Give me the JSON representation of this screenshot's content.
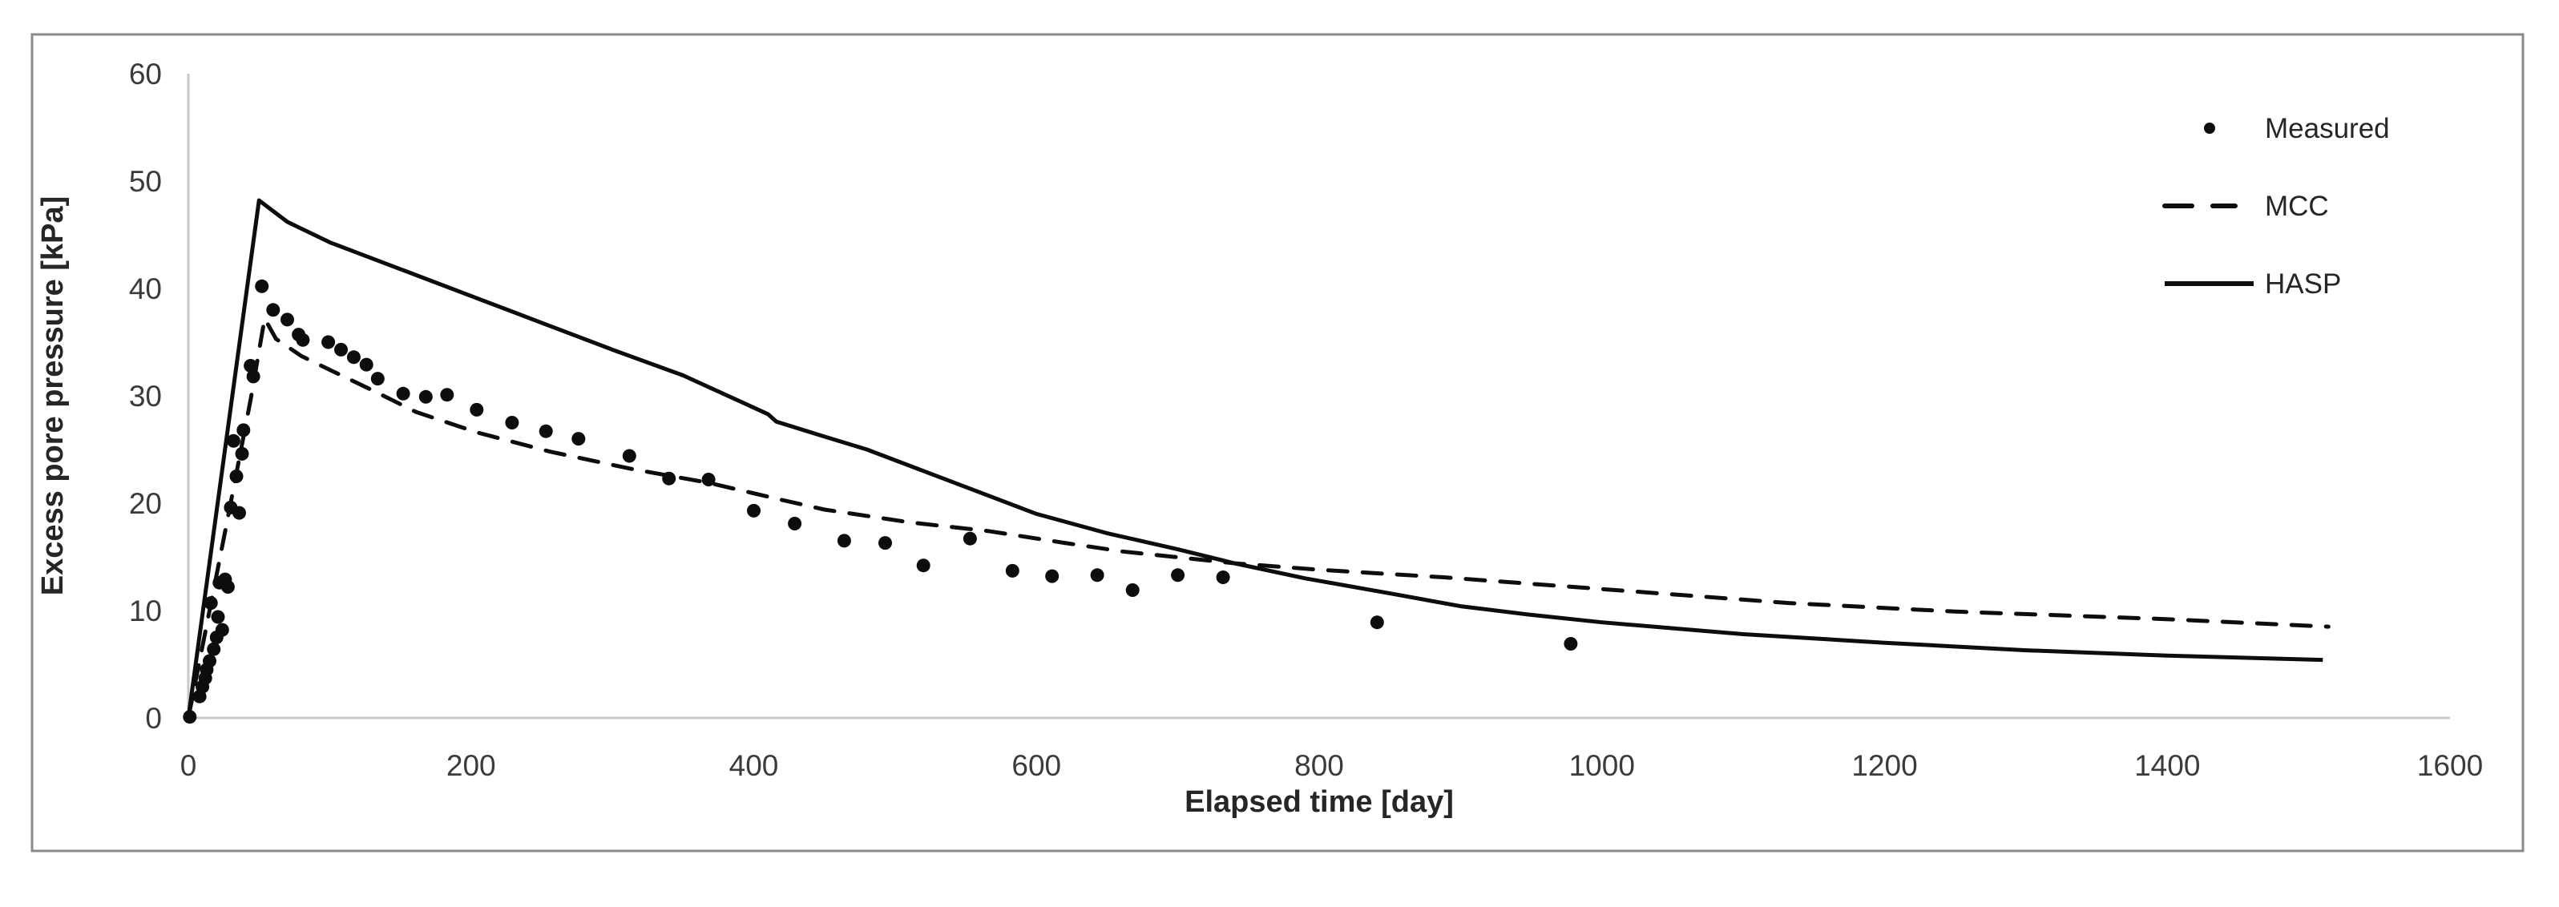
{
  "figure": {
    "border_color": "#8a8a8a",
    "background_color": "#ffffff",
    "axis_line_color": "#c9c9c9",
    "text_color": "#262626"
  },
  "chart_data": {
    "type": "line",
    "title": "",
    "xlabel": "Elapsed time [day]",
    "ylabel": "Excess pore pressure [kPa]",
    "xlim": [
      0,
      1600
    ],
    "ylim": [
      0,
      60
    ],
    "x_ticks": [
      0,
      200,
      400,
      600,
      800,
      1000,
      1200,
      1400,
      1600
    ],
    "y_ticks": [
      0,
      10,
      20,
      30,
      40,
      50,
      60
    ],
    "grid": false,
    "legend_position": "top-right",
    "series": [
      {
        "name": "Measured",
        "kind": "scatter",
        "marker": "dot",
        "color": "#0d0d0d",
        "points": [
          [
            1,
            0.1
          ],
          [
            8,
            2.0
          ],
          [
            10,
            2.9
          ],
          [
            12,
            3.7
          ],
          [
            13,
            4.5
          ],
          [
            15,
            5.3
          ],
          [
            18,
            6.4
          ],
          [
            20,
            7.5
          ],
          [
            24,
            8.2
          ],
          [
            21,
            9.4
          ],
          [
            16,
            10.7
          ],
          [
            22,
            12.6
          ],
          [
            26,
            12.9
          ],
          [
            28,
            12.2
          ],
          [
            30,
            19.6
          ],
          [
            36,
            19.1
          ],
          [
            34,
            22.5
          ],
          [
            32,
            25.8
          ],
          [
            38,
            24.6
          ],
          [
            39,
            26.8
          ],
          [
            44,
            32.8
          ],
          [
            46,
            31.8
          ],
          [
            52,
            40.2
          ],
          [
            60,
            38.0
          ],
          [
            70,
            37.1
          ],
          [
            78,
            35.7
          ],
          [
            81,
            35.2
          ],
          [
            99,
            35.0
          ],
          [
            108,
            34.3
          ],
          [
            117,
            33.6
          ],
          [
            126,
            32.9
          ],
          [
            134,
            31.6
          ],
          [
            152,
            30.2
          ],
          [
            168,
            29.9
          ],
          [
            183,
            30.1
          ],
          [
            204,
            28.7
          ],
          [
            229,
            27.5
          ],
          [
            253,
            26.7
          ],
          [
            276,
            26.0
          ],
          [
            312,
            24.4
          ],
          [
            340,
            22.3
          ],
          [
            368,
            22.2
          ],
          [
            400,
            19.3
          ],
          [
            429,
            18.1
          ],
          [
            464,
            16.5
          ],
          [
            493,
            16.3
          ],
          [
            520,
            14.2
          ],
          [
            553,
            16.7
          ],
          [
            583,
            13.7
          ],
          [
            611,
            13.2
          ],
          [
            643,
            13.3
          ],
          [
            668,
            11.9
          ],
          [
            700,
            13.3
          ],
          [
            732,
            13.1
          ],
          [
            841,
            8.9
          ],
          [
            978,
            6.9
          ]
        ]
      },
      {
        "name": "MCC",
        "kind": "line",
        "style": "dashed",
        "color": "#0d0d0d",
        "points": [
          [
            0,
            0
          ],
          [
            27,
            18.0
          ],
          [
            44,
            29.6
          ],
          [
            54,
            37.2
          ],
          [
            62,
            35.3
          ],
          [
            80,
            33.7
          ],
          [
            102,
            32.3
          ],
          [
            132,
            30.4
          ],
          [
            161,
            28.5
          ],
          [
            204,
            26.6
          ],
          [
            256,
            24.8
          ],
          [
            313,
            23.2
          ],
          [
            368,
            21.9
          ],
          [
            420,
            20.3
          ],
          [
            450,
            19.4
          ],
          [
            511,
            18.2
          ],
          [
            566,
            17.4
          ],
          [
            620,
            16.3
          ],
          [
            661,
            15.5
          ],
          [
            740,
            14.4
          ],
          [
            800,
            13.8
          ],
          [
            888,
            13.1
          ],
          [
            1000,
            12.0
          ],
          [
            1132,
            10.7
          ],
          [
            1250,
            9.9
          ],
          [
            1399,
            9.2
          ],
          [
            1514,
            8.5
          ]
        ]
      },
      {
        "name": "HASP",
        "kind": "line",
        "style": "solid",
        "color": "#0d0d0d",
        "points": [
          [
            0,
            0
          ],
          [
            50,
            48.2
          ],
          [
            70,
            46.2
          ],
          [
            100,
            44.3
          ],
          [
            150,
            41.8
          ],
          [
            200,
            39.3
          ],
          [
            250,
            36.8
          ],
          [
            300,
            34.3
          ],
          [
            350,
            31.9
          ],
          [
            410,
            28.3
          ],
          [
            416,
            27.6
          ],
          [
            450,
            26.2
          ],
          [
            480,
            25.0
          ],
          [
            520,
            23.0
          ],
          [
            560,
            21.0
          ],
          [
            600,
            19.0
          ],
          [
            650,
            17.2
          ],
          [
            700,
            15.7
          ],
          [
            740,
            14.4
          ],
          [
            790,
            13.0
          ],
          [
            850,
            11.6
          ],
          [
            900,
            10.4
          ],
          [
            950,
            9.6
          ],
          [
            1000,
            8.9
          ],
          [
            1100,
            7.8
          ],
          [
            1200,
            7.0
          ],
          [
            1300,
            6.3
          ],
          [
            1400,
            5.8
          ],
          [
            1510,
            5.4
          ]
        ]
      }
    ]
  }
}
